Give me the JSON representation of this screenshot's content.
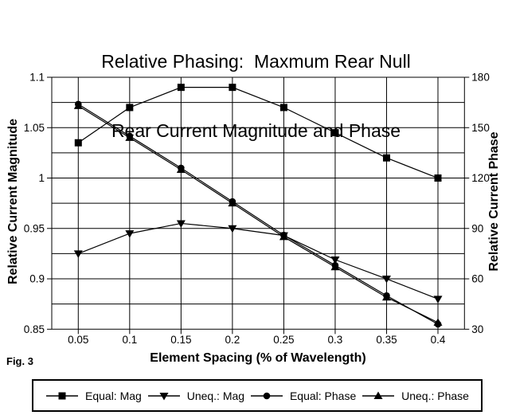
{
  "title": {
    "line1": "Relative Phasing:  Maxmum Rear Null",
    "line2": "Rear Current Magnitude and Phase"
  },
  "fig_label": "Fig. 3",
  "colors": {
    "foreground": "#000000",
    "background": "#ffffff"
  },
  "chart_data": {
    "type": "line",
    "x": [
      0.05,
      0.1,
      0.15,
      0.2,
      0.25,
      0.3,
      0.35,
      0.4
    ],
    "x_tick_labels": [
      "0.05",
      "0.1",
      "0.15",
      "0.2",
      "0.25",
      "0.3",
      "0.35",
      "0.4"
    ],
    "xlabel": "Element Spacing (% of Wavelength)",
    "ylabel_left": "Relative Current Magnitude",
    "ylabel_right": "Relative Current Phase",
    "ylim_left": [
      0.85,
      1.1
    ],
    "ylim_right": [
      30,
      180
    ],
    "left_tick_labels": [
      "1.1",
      "1.05",
      "1",
      "0.95",
      "0.9",
      "0.85"
    ],
    "right_tick_labels": [
      "180",
      "150",
      "120",
      "90",
      "60",
      "30"
    ],
    "grid": {
      "horizontal_minor_step_left_axis": 0.025,
      "vertical_at_each_x": true,
      "frame": true
    },
    "legend_position": "bottom",
    "series": [
      {
        "name": "Equal: Mag",
        "axis": "left",
        "marker": "square",
        "values": [
          1.035,
          1.07,
          1.09,
          1.09,
          1.07,
          1.045,
          1.02,
          1.0
        ]
      },
      {
        "name": "Uneq.: Mag",
        "axis": "left",
        "marker": "triangle-down",
        "values": [
          0.925,
          0.945,
          0.955,
          0.95,
          0.943,
          0.919,
          0.9,
          0.88
        ]
      },
      {
        "name": "Equal: Phase",
        "axis": "right",
        "marker": "circle",
        "values": [
          164,
          145,
          126,
          106,
          86,
          68,
          50,
          33
        ]
      },
      {
        "name": "Uneq.: Phase",
        "axis": "right",
        "marker": "triangle-up",
        "values": [
          163,
          144,
          125,
          105,
          85,
          67,
          49,
          34
        ]
      }
    ]
  }
}
